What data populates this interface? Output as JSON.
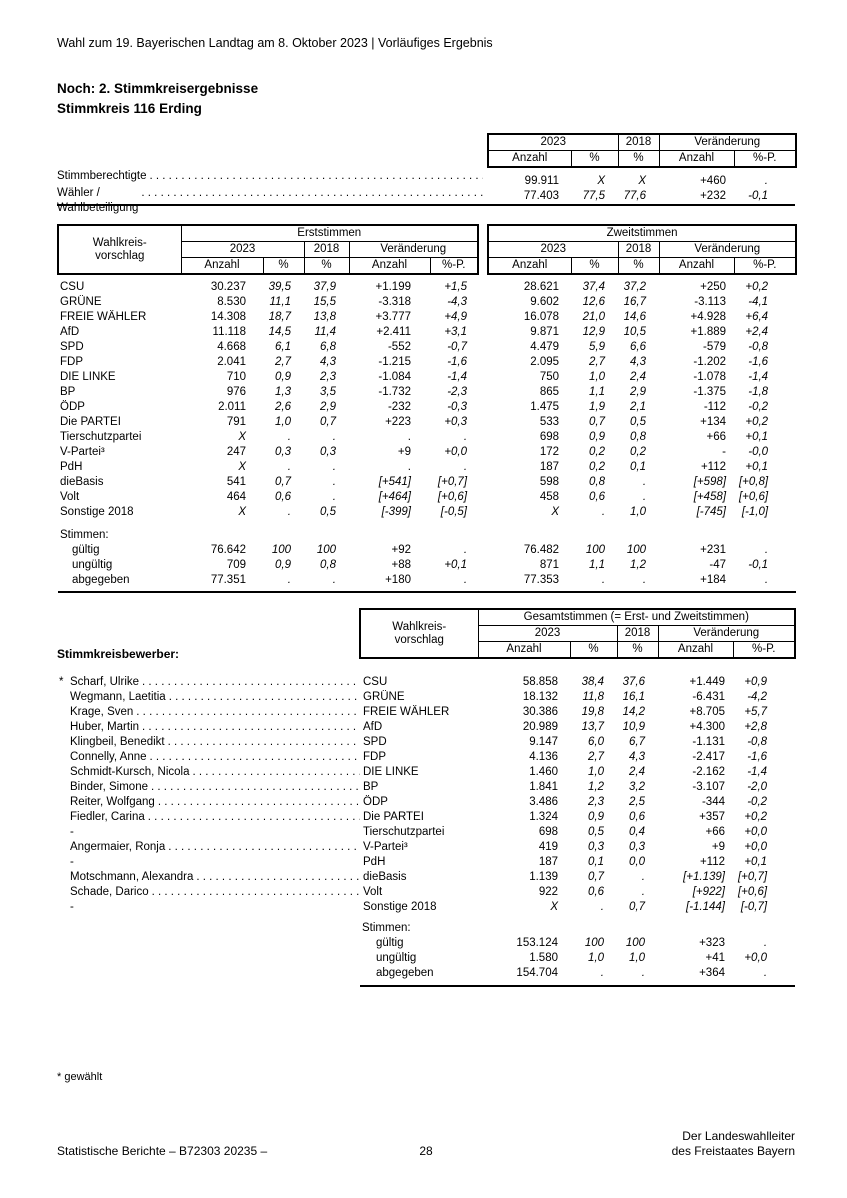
{
  "page": {
    "header": "Wahl zum 19. Bayerischen Landtag am 8. Oktober 2023 | Vorläufiges Ergebnis",
    "title_line1": "Noch: 2. Stimmkreisergebnisse",
    "title_line2": "Stimmkreis 116 Erding",
    "footnote": "* gewählt",
    "footer_left": "Statistische Berichte – B72303 20235 –",
    "footer_page_number": "28",
    "footer_right_line1": "Der Landeswahlleiter",
    "footer_right_line2": "des Freistaates Bayern"
  },
  "summary_table": {
    "year_headers": [
      "2023",
      "2018",
      "Veränderung"
    ],
    "sub_headers": [
      "Anzahl",
      "%",
      "%",
      "Anzahl",
      "%-P."
    ],
    "rows": [
      {
        "label": "Stimmberechtigte",
        "values": [
          "99.911",
          "X",
          "X",
          "+460",
          "."
        ]
      },
      {
        "label": "Wähler / Wahlbeteiligung",
        "values": [
          "77.403",
          "77,5",
          "77,6",
          "+232",
          "-0,1"
        ]
      }
    ]
  },
  "votes_table": {
    "corner_label_line1": "Wahlkreis-",
    "corner_label_line2": "vorschlag",
    "group_headers": [
      "Erststimmen",
      "Zweitstimmen"
    ],
    "year_headers": [
      "2023",
      "2018",
      "Veränderung"
    ],
    "sub_headers": [
      "Anzahl",
      "%",
      "%",
      "Anzahl",
      "%-P."
    ],
    "rows": [
      {
        "label": "CSU",
        "erst": [
          "30.237",
          "39,5",
          "37,9",
          "+1.199",
          "+1,5"
        ],
        "zweit": [
          "28.621",
          "37,4",
          "37,2",
          "+250",
          "+0,2"
        ]
      },
      {
        "label": "GRÜNE",
        "erst": [
          "8.530",
          "11,1",
          "15,5",
          "-3.318",
          "-4,3"
        ],
        "zweit": [
          "9.602",
          "12,6",
          "16,7",
          "-3.113",
          "-4,1"
        ]
      },
      {
        "label": "FREIE WÄHLER",
        "erst": [
          "14.308",
          "18,7",
          "13,8",
          "+3.777",
          "+4,9"
        ],
        "zweit": [
          "16.078",
          "21,0",
          "14,6",
          "+4.928",
          "+6,4"
        ]
      },
      {
        "label": "AfD",
        "erst": [
          "11.118",
          "14,5",
          "11,4",
          "+2.411",
          "+3,1"
        ],
        "zweit": [
          "9.871",
          "12,9",
          "10,5",
          "+1.889",
          "+2,4"
        ]
      },
      {
        "label": "SPD",
        "erst": [
          "4.668",
          "6,1",
          "6,8",
          "-552",
          "-0,7"
        ],
        "zweit": [
          "4.479",
          "5,9",
          "6,6",
          "-579",
          "-0,8"
        ]
      },
      {
        "label": "FDP",
        "erst": [
          "2.041",
          "2,7",
          "4,3",
          "-1.215",
          "-1,6"
        ],
        "zweit": [
          "2.095",
          "2,7",
          "4,3",
          "-1.202",
          "-1,6"
        ]
      },
      {
        "label": "DIE LINKE",
        "erst": [
          "710",
          "0,9",
          "2,3",
          "-1.084",
          "-1,4"
        ],
        "zweit": [
          "750",
          "1,0",
          "2,4",
          "-1.078",
          "-1,4"
        ]
      },
      {
        "label": "BP",
        "erst": [
          "976",
          "1,3",
          "3,5",
          "-1.732",
          "-2,3"
        ],
        "zweit": [
          "865",
          "1,1",
          "2,9",
          "-1.375",
          "-1,8"
        ]
      },
      {
        "label": "ÖDP",
        "erst": [
          "2.011",
          "2,6",
          "2,9",
          "-232",
          "-0,3"
        ],
        "zweit": [
          "1.475",
          "1,9",
          "2,1",
          "-112",
          "-0,2"
        ]
      },
      {
        "label": "Die PARTEI",
        "erst": [
          "791",
          "1,0",
          "0,7",
          "+223",
          "+0,3"
        ],
        "zweit": [
          "533",
          "0,7",
          "0,5",
          "+134",
          "+0,2"
        ]
      },
      {
        "label": "Tierschutzpartei",
        "erst": [
          "X",
          ".",
          ".",
          ".",
          "."
        ],
        "zweit": [
          "698",
          "0,9",
          "0,8",
          "+66",
          "+0,1"
        ]
      },
      {
        "label": "V-Partei³",
        "erst": [
          "247",
          "0,3",
          "0,3",
          "+9",
          "+0,0"
        ],
        "zweit": [
          "172",
          "0,2",
          "0,2",
          "-",
          "-0,0"
        ]
      },
      {
        "label": "PdH",
        "erst": [
          "X",
          ".",
          ".",
          ".",
          "."
        ],
        "zweit": [
          "187",
          "0,2",
          "0,1",
          "+112",
          "+0,1"
        ]
      },
      {
        "label": "dieBasis",
        "erst": [
          "541",
          "0,7",
          ".",
          "[+541]",
          "[+0,7]"
        ],
        "zweit": [
          "598",
          "0,8",
          ".",
          "[+598]",
          "[+0,8]"
        ]
      },
      {
        "label": "Volt",
        "erst": [
          "464",
          "0,6",
          ".",
          "[+464]",
          "[+0,6]"
        ],
        "zweit": [
          "458",
          "0,6",
          ".",
          "[+458]",
          "[+0,6]"
        ]
      },
      {
        "label": "Sonstige 2018",
        "erst": [
          "X",
          ".",
          "0,5",
          "[-399]",
          "[-0,5]"
        ],
        "zweit": [
          "X",
          ".",
          "1,0",
          "[-745]",
          "[-1,0]"
        ]
      }
    ],
    "stimmen_label": "Stimmen:",
    "stimmen_rows": [
      {
        "label": "gültig",
        "erst": [
          "76.642",
          "100",
          "100",
          "+92",
          "."
        ],
        "zweit": [
          "76.482",
          "100",
          "100",
          "+231",
          "."
        ]
      },
      {
        "label": "ungültig",
        "erst": [
          "709",
          "0,9",
          "0,8",
          "+88",
          "+0,1"
        ],
        "zweit": [
          "871",
          "1,1",
          "1,2",
          "-47",
          "-0,1"
        ]
      },
      {
        "label": "abgegeben",
        "erst": [
          "77.351",
          ".",
          ".",
          "+180",
          "."
        ],
        "zweit": [
          "77.353",
          ".",
          ".",
          "+184",
          "."
        ]
      }
    ]
  },
  "candidates_table": {
    "section_label": "Stimmkreisbewerber:",
    "corner_label_line1": "Wahlkreis-",
    "corner_label_line2": "vorschlag",
    "group_header": "Gesamtstimmen (= Erst- und Zweitstimmen)",
    "year_headers": [
      "2023",
      "2018",
      "Veränderung"
    ],
    "sub_headers": [
      "Anzahl",
      "%",
      "%",
      "Anzahl",
      "%-P."
    ],
    "rows": [
      {
        "star": "*",
        "name": "Scharf, Ulrike",
        "party": "CSU",
        "values": [
          "58.858",
          "38,4",
          "37,6",
          "+1.449",
          "+0,9"
        ]
      },
      {
        "star": "",
        "name": "Wegmann, Laetitia",
        "party": "GRÜNE",
        "values": [
          "18.132",
          "11,8",
          "16,1",
          "-6.431",
          "-4,2"
        ]
      },
      {
        "star": "",
        "name": "Krage, Sven",
        "party": "FREIE WÄHLER",
        "values": [
          "30.386",
          "19,8",
          "14,2",
          "+8.705",
          "+5,7"
        ]
      },
      {
        "star": "",
        "name": "Huber, Martin",
        "party": "AfD",
        "values": [
          "20.989",
          "13,7",
          "10,9",
          "+4.300",
          "+2,8"
        ]
      },
      {
        "star": "",
        "name": "Klingbeil, Benedikt",
        "party": "SPD",
        "values": [
          "9.147",
          "6,0",
          "6,7",
          "-1.131",
          "-0,8"
        ]
      },
      {
        "star": "",
        "name": "Connelly, Anne",
        "party": "FDP",
        "values": [
          "4.136",
          "2,7",
          "4,3",
          "-2.417",
          "-1,6"
        ]
      },
      {
        "star": "",
        "name": "Schmidt-Kursch, Nicola",
        "party": "DIE LINKE",
        "values": [
          "1.460",
          "1,0",
          "2,4",
          "-2.162",
          "-1,4"
        ]
      },
      {
        "star": "",
        "name": "Binder, Simone",
        "party": "BP",
        "values": [
          "1.841",
          "1,2",
          "3,2",
          "-3.107",
          "-2,0"
        ]
      },
      {
        "star": "",
        "name": "Reiter, Wolfgang",
        "party": "ÖDP",
        "values": [
          "3.486",
          "2,3",
          "2,5",
          "-344",
          "-0,2"
        ]
      },
      {
        "star": "",
        "name": "Fiedler, Carina",
        "party": "Die PARTEI",
        "values": [
          "1.324",
          "0,9",
          "0,6",
          "+357",
          "+0,2"
        ]
      },
      {
        "star": "",
        "name": "-",
        "party": "Tierschutzpartei",
        "values": [
          "698",
          "0,5",
          "0,4",
          "+66",
          "+0,0"
        ]
      },
      {
        "star": "",
        "name": "Angermaier, Ronja",
        "party": "V-Partei³",
        "values": [
          "419",
          "0,3",
          "0,3",
          "+9",
          "+0,0"
        ]
      },
      {
        "star": "",
        "name": "-",
        "party": "PdH",
        "values": [
          "187",
          "0,1",
          "0,0",
          "+112",
          "+0,1"
        ]
      },
      {
        "star": "",
        "name": "Motschmann, Alexandra",
        "party": "dieBasis",
        "values": [
          "1.139",
          "0,7",
          ".",
          "[+1.139]",
          "[+0,7]"
        ]
      },
      {
        "star": "",
        "name": "Schade, Darico",
        "party": "Volt",
        "values": [
          "922",
          "0,6",
          ".",
          "[+922]",
          "[+0,6]"
        ]
      },
      {
        "star": "",
        "name": "-",
        "party": "Sonstige 2018",
        "values": [
          "X",
          ".",
          "0,7",
          "[-1.144]",
          "[-0,7]"
        ]
      }
    ],
    "stimmen_label": "Stimmen:",
    "stimmen_rows": [
      {
        "label": "gültig",
        "values": [
          "153.124",
          "100",
          "100",
          "+323",
          "."
        ]
      },
      {
        "label": "ungültig",
        "values": [
          "1.580",
          "1,0",
          "1,0",
          "+41",
          "+0,0"
        ]
      },
      {
        "label": "abgegeben",
        "values": [
          "154.704",
          ".",
          ".",
          "+364",
          "."
        ]
      }
    ]
  }
}
